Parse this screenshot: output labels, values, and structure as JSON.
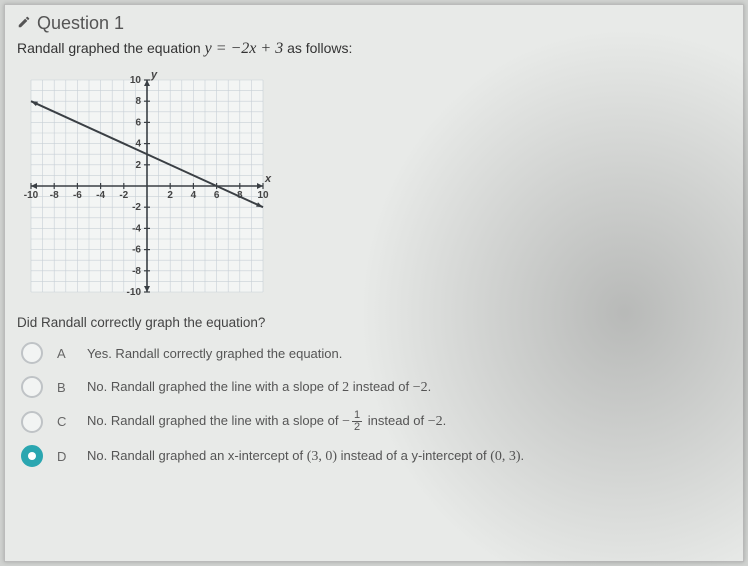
{
  "header": {
    "title": "Question 1"
  },
  "prompt": {
    "lead": "Randall graphed the equation ",
    "equation": "y = −2x + 3",
    "tail": " as follows:"
  },
  "graph": {
    "type": "line",
    "xlim": [
      -10,
      10
    ],
    "ylim": [
      -10,
      10
    ],
    "xtick_step": 2,
    "ytick_step": 2,
    "grid_color": "#c7cfd6",
    "axis_color": "#3a3f44",
    "background_color": "#f3f5f4",
    "line_color": "#3a3f44",
    "line_width": 2,
    "line_points": [
      [
        -10,
        8
      ],
      [
        10,
        -2
      ]
    ],
    "xlabel": "x",
    "ylabel": "y",
    "xtick_labels": [
      "-10",
      "-8",
      "-6",
      "-4",
      "-2",
      "2",
      "4",
      "6",
      "8",
      "10"
    ],
    "ytick_labels": [
      "-10",
      "-8",
      "-6",
      "-4",
      "-2",
      "2",
      "4",
      "6",
      "8",
      "10"
    ],
    "label_fontsize": 10,
    "label_color": "#444"
  },
  "subquestion": "Did Randall correctly graph the equation?",
  "options": [
    {
      "letter": "A",
      "selected": false,
      "text_html": "Yes. Randall correctly graphed the equation."
    },
    {
      "letter": "B",
      "selected": false,
      "text_html": "No. Randall graphed the line with a slope of <span class='mathnum'>2</span> instead of <span class='mathnum'>−2</span>."
    },
    {
      "letter": "C",
      "selected": false,
      "text_html": "No. Randall graphed the line with a slope of <span class='mathnum'>−</span><span class='frac'><span class='num'>1</span><span class='den'>2</span></span> instead of <span class='mathnum'>−2</span>."
    },
    {
      "letter": "D",
      "selected": true,
      "text_html": "No. Randall graphed an x-intercept of <span class='mathnum'>(3, 0)</span> instead of a y-intercept of <span class='mathnum'>(0, 3)</span>."
    }
  ]
}
